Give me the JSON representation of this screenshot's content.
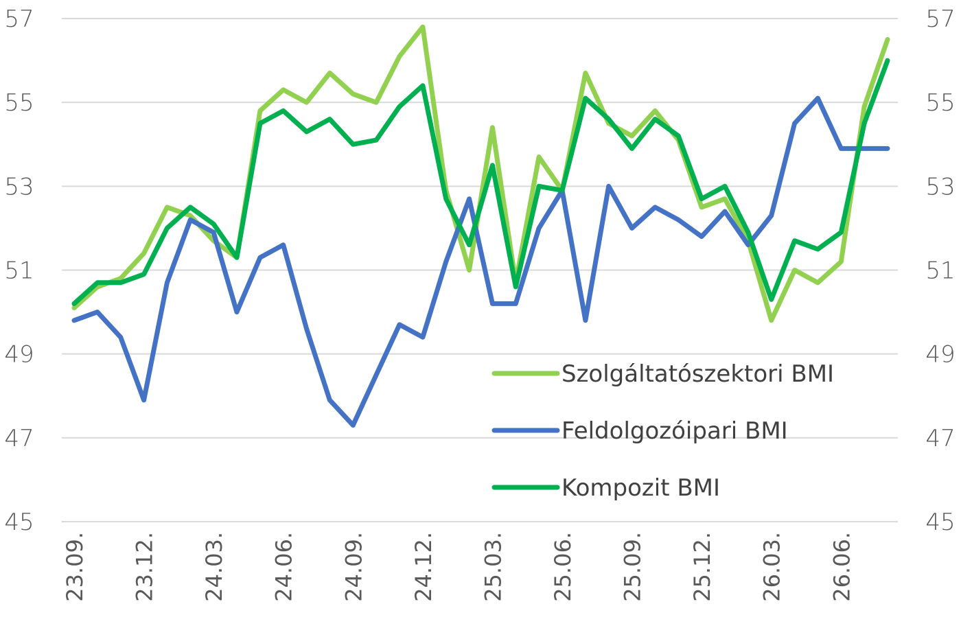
{
  "chart_data": {
    "type": "line",
    "y_axis": {
      "min": 45,
      "max": 57,
      "ticks": [
        45,
        47,
        49,
        51,
        53,
        55,
        57
      ]
    },
    "x_tick_labels": [
      "23.09.",
      "23.12.",
      "24.03.",
      "24.06.",
      "24.09.",
      "24.12.",
      "25.03.",
      "25.06.",
      "25.09.",
      "25.12.",
      "26.03.",
      "26.06."
    ],
    "point_count": 36,
    "grid": "horizontal",
    "legend_position": "lower-right",
    "series": [
      {
        "name": "Szolgáltatószektori BMI",
        "color": "#92d050",
        "values": [
          50.1,
          50.6,
          50.8,
          51.4,
          52.5,
          52.3,
          51.7,
          51.3,
          54.8,
          55.3,
          55.0,
          55.7,
          55.2,
          55.0,
          56.1,
          56.8,
          52.9,
          51.0,
          54.4,
          50.7,
          53.7,
          52.9,
          55.7,
          54.5,
          54.2,
          54.8,
          54.1,
          52.5,
          52.7,
          51.7,
          49.8,
          51.0,
          50.7,
          51.2,
          54.9,
          56.5
        ]
      },
      {
        "name": "Feldolgozóipari BMI",
        "color": "#4472c4",
        "values": [
          49.8,
          50.0,
          49.4,
          47.9,
          50.7,
          52.2,
          51.9,
          50.0,
          51.3,
          51.6,
          49.6,
          47.9,
          47.3,
          48.5,
          49.7,
          49.4,
          51.2,
          52.7,
          50.2,
          50.2,
          52.0,
          52.9,
          49.8,
          53.0,
          52.0,
          52.5,
          52.2,
          51.8,
          52.4,
          51.6,
          52.3,
          54.5,
          55.1,
          53.9,
          53.9,
          53.9
        ]
      },
      {
        "name": "Kompozit BMI",
        "color": "#00b050",
        "values": [
          50.2,
          50.7,
          50.7,
          50.9,
          52.0,
          52.5,
          52.1,
          51.3,
          54.5,
          54.8,
          54.3,
          54.6,
          54.0,
          54.1,
          54.9,
          55.4,
          52.7,
          51.6,
          53.5,
          50.6,
          53.0,
          52.9,
          55.1,
          54.6,
          53.9,
          54.6,
          54.2,
          52.7,
          53.0,
          51.9,
          50.3,
          51.7,
          51.5,
          51.9,
          54.5,
          56.0
        ]
      }
    ]
  }
}
